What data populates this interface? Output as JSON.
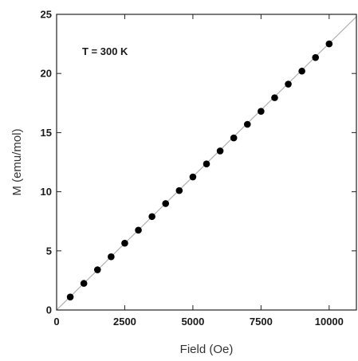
{
  "chart_data": {
    "type": "scatter",
    "title": "",
    "xlabel": "Field (Oe)",
    "ylabel": "M (emu/mol)",
    "xlim": [
      0,
      11000
    ],
    "ylim": [
      0,
      25
    ],
    "xticks": [
      0,
      2500,
      5000,
      7500,
      10000
    ],
    "yticks": [
      0,
      5,
      10,
      15,
      20,
      25
    ],
    "annotation": "T = 300 K",
    "grid": false,
    "legend": "none",
    "series": [
      {
        "x": [
          500,
          1000,
          1500,
          2000,
          2500,
          3000,
          3500,
          4000,
          4500,
          5000,
          5500,
          6000,
          6500,
          7000,
          7500,
          8000,
          8500,
          9000,
          9500,
          10000
        ],
        "y": [
          1.1,
          2.25,
          3.4,
          4.5,
          5.65,
          6.75,
          7.9,
          9.0,
          10.1,
          11.25,
          12.35,
          13.45,
          14.55,
          15.7,
          16.8,
          17.95,
          19.1,
          20.2,
          21.35,
          22.5
        ],
        "marker": "filled-circle",
        "color": "#000000"
      }
    ],
    "fit_line": {
      "x": [
        0,
        11000
      ],
      "y": [
        0,
        24.8
      ],
      "color": "#b0b0b0"
    }
  }
}
